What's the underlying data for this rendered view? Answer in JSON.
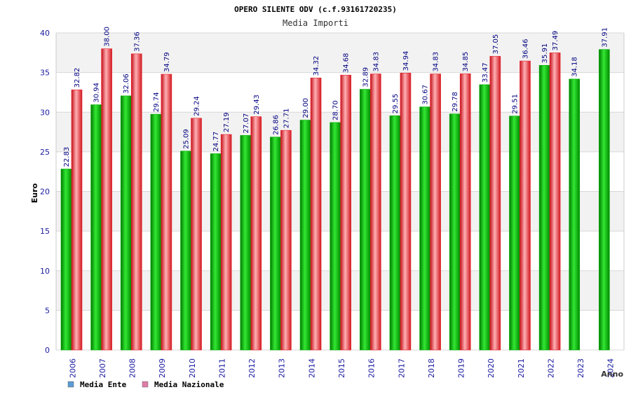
{
  "chart_data": {
    "type": "bar",
    "title": "OPERO SILENTE ODV (c.f.93161720235)",
    "subtitle": "Media Importi",
    "xlabel": "Anno",
    "ylabel": "Euro",
    "ylim": [
      0,
      40
    ],
    "yticks": [
      "0",
      "5",
      "10",
      "15",
      "20",
      "25",
      "30",
      "35",
      "40"
    ],
    "grid": true,
    "legend_position": "bottom-left",
    "categories": [
      "2006",
      "2007",
      "2008",
      "2009",
      "2010",
      "2011",
      "2012",
      "2013",
      "2014",
      "2015",
      "2016",
      "2017",
      "2018",
      "2019",
      "2020",
      "2021",
      "2022",
      "2023",
      "2024"
    ],
    "series": [
      {
        "name": "Media Ente",
        "legend_color": "#5b9bd5",
        "bar_color": "#00b000",
        "values": [
          22.83,
          30.94,
          32.06,
          29.74,
          25.09,
          24.77,
          27.07,
          26.86,
          29.0,
          28.7,
          32.89,
          29.55,
          30.67,
          29.78,
          33.47,
          29.51,
          35.91,
          34.18,
          37.91
        ],
        "labels": [
          "22.83",
          "30.94",
          "32.06",
          "29.74",
          "25.09",
          "24.77",
          "27.07",
          "26.86",
          "29.00",
          "28.70",
          "32.89",
          "29.55",
          "30.67",
          "29.78",
          "33.47",
          "29.51",
          "35.91",
          "34.18",
          "37.91"
        ]
      },
      {
        "name": "Media Nazionale",
        "legend_color": "#e07ba8",
        "bar_color": "#e8202a",
        "values": [
          32.82,
          38.0,
          37.36,
          34.79,
          29.24,
          27.19,
          29.43,
          27.71,
          34.32,
          34.68,
          34.83,
          34.94,
          34.83,
          34.85,
          37.05,
          36.46,
          37.49,
          null,
          null
        ],
        "labels": [
          "32.82",
          "38.00",
          "37.36",
          "34.79",
          "29.24",
          "27.19",
          "29.43",
          "27.71",
          "34.32",
          "34.68",
          "34.83",
          "34.94",
          "34.83",
          "34.85",
          "37.05",
          "36.46",
          "37.49",
          "",
          ""
        ]
      }
    ]
  }
}
